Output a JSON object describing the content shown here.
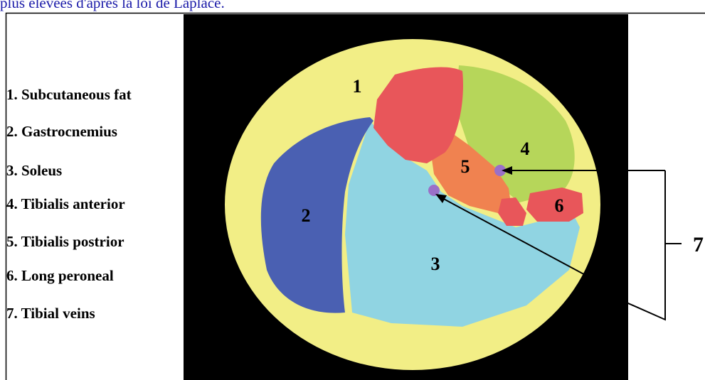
{
  "caption": "plus élevées d'après la loi de Laplace.",
  "legend": [
    "1. Subcutaneous fat",
    "2. Gastrocnemius",
    "3. Soleus",
    "4. Tibialis anterior",
    "5. Tibialis postrior",
    "6. Long peroneal",
    "7. Tibial veins"
  ],
  "regions": [
    "1",
    "2",
    "3",
    "4",
    "5",
    "6"
  ],
  "veins_label": "7"
}
